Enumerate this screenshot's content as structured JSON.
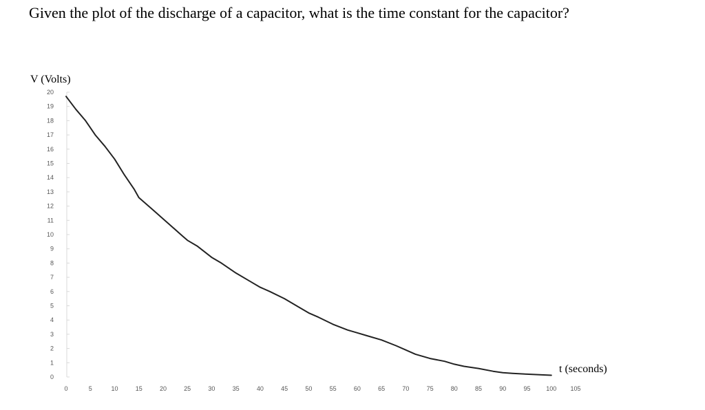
{
  "question": "Given the plot of the discharge of a capacitor, what is the time constant for the capacitor?",
  "chart_data": {
    "type": "line",
    "title": "",
    "ylabel": "V (Volts)",
    "xlabel": "t (seconds)",
    "xlim": [
      0,
      105
    ],
    "ylim": [
      0,
      20
    ],
    "x_ticks": [
      0,
      5,
      10,
      15,
      20,
      25,
      30,
      35,
      40,
      45,
      50,
      55,
      60,
      65,
      70,
      75,
      80,
      85,
      90,
      95,
      100,
      105
    ],
    "y_ticks": [
      0,
      1,
      2,
      3,
      4,
      5,
      6,
      7,
      8,
      9,
      10,
      11,
      12,
      13,
      14,
      15,
      16,
      17,
      18,
      19,
      20
    ],
    "grid": false,
    "series": [
      {
        "color": "#222222",
        "x": [
          0,
          2,
          4,
          6,
          8,
          10,
          12,
          14,
          15,
          18,
          20,
          22,
          24,
          25,
          27,
          30,
          32,
          35,
          38,
          40,
          42,
          45,
          48,
          50,
          52,
          55,
          58,
          60,
          62,
          65,
          68,
          70,
          72,
          75,
          78,
          80,
          82,
          85,
          88,
          90,
          92,
          95,
          98,
          100
        ],
        "y": [
          19.7,
          18.8,
          18.0,
          17.0,
          16.2,
          15.3,
          14.2,
          13.2,
          12.6,
          11.7,
          11.1,
          10.5,
          9.9,
          9.6,
          9.2,
          8.4,
          8.0,
          7.3,
          6.7,
          6.3,
          6.0,
          5.5,
          4.9,
          4.5,
          4.2,
          3.7,
          3.3,
          3.1,
          2.9,
          2.6,
          2.2,
          1.9,
          1.6,
          1.3,
          1.1,
          0.9,
          0.75,
          0.6,
          0.4,
          0.3,
          0.25,
          0.2,
          0.15,
          0.12
        ]
      }
    ]
  }
}
